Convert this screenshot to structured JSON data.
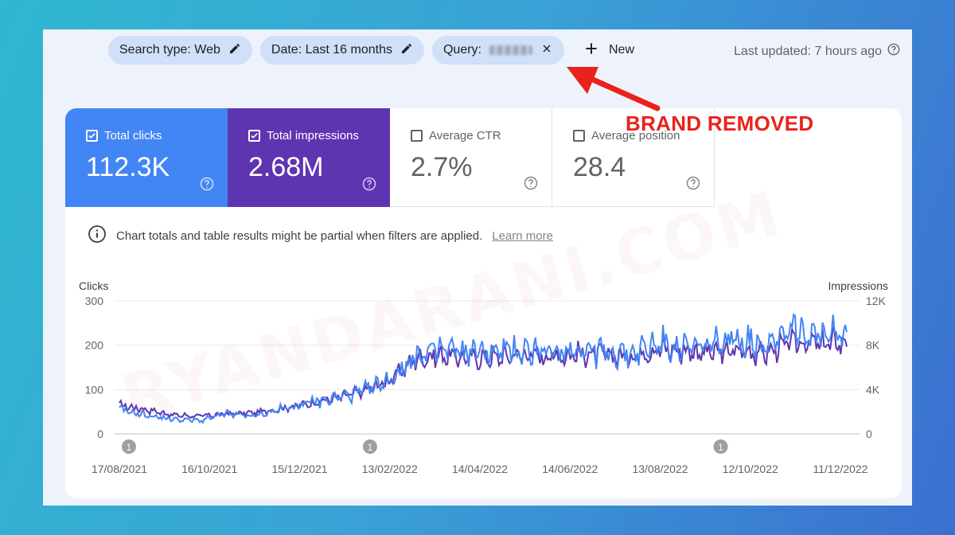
{
  "filters": {
    "search_type": "Search type: Web",
    "date": "Date: Last 16 months",
    "query_label": "Query:",
    "new_label": "New"
  },
  "last_updated": "Last updated: 7 hours ago",
  "annotation": "BRAND REMOVED",
  "watermark": "RYANDARANI.COM",
  "metrics": [
    {
      "label": "Total clicks",
      "value": "112.3K",
      "checked": true
    },
    {
      "label": "Total impressions",
      "value": "2.68M",
      "checked": true
    },
    {
      "label": "Average CTR",
      "value": "2.7%",
      "checked": false
    },
    {
      "label": "Average position",
      "value": "28.4",
      "checked": false
    }
  ],
  "info_text": "Chart totals and table results might be partial when filters are applied.",
  "learn_more": "Learn more",
  "colors": {
    "clicks": "#4285f4",
    "impressions": "#5e35b1",
    "annotation": "#e8221c"
  },
  "chart_data": {
    "type": "line",
    "y_left_label": "Clicks",
    "y_right_label": "Impressions",
    "y_left_ticks": [
      "300",
      "200",
      "100",
      "0"
    ],
    "y_right_ticks": [
      "12K",
      "8K",
      "4K",
      "0"
    ],
    "ylim_left": [
      0,
      300
    ],
    "ylim_right": [
      0,
      12000
    ],
    "x_ticks": [
      "17/08/2021",
      "16/10/2021",
      "15/12/2021",
      "13/02/2022",
      "14/04/2022",
      "14/06/2022",
      "13/08/2022",
      "12/10/2022",
      "11/12/2022"
    ],
    "annotation_markers": [
      "1",
      "1",
      "1"
    ],
    "series": [
      {
        "name": "Clicks",
        "axis": "left",
        "color": "#4285f4",
        "values": [
          55,
          42,
          33,
          30,
          45,
          40,
          55,
          70,
          80,
          95,
          120,
          175,
          190,
          185,
          185,
          190,
          180,
          195,
          185,
          180,
          205,
          190,
          200,
          215,
          205,
          245,
          215,
          225
        ]
      },
      {
        "name": "Impressions",
        "axis": "right",
        "color": "#5e35b1",
        "values": [
          2600,
          2200,
          1700,
          1600,
          1800,
          1900,
          2300,
          2700,
          3200,
          3800,
          4800,
          6800,
          7100,
          6800,
          6900,
          7200,
          7000,
          7200,
          7100,
          7000,
          7700,
          7500,
          7300,
          7500,
          7300,
          8300,
          8100,
          8300
        ]
      }
    ]
  }
}
